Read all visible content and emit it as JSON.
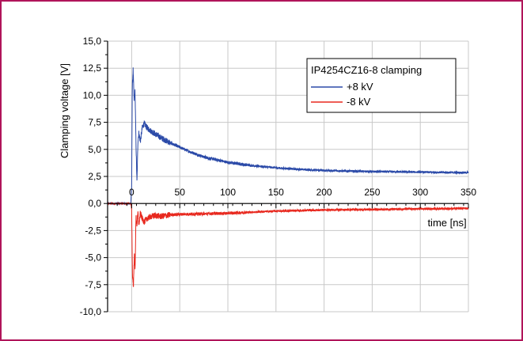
{
  "frame_color": "#b0155a",
  "chart_data": {
    "type": "line",
    "xlabel": "time [ns]",
    "ylabel": "Clamping voltage [V]",
    "xlim": [
      -25,
      350
    ],
    "ylim": [
      -10,
      15
    ],
    "x_ticks": [
      0,
      50,
      100,
      150,
      200,
      250,
      300,
      350
    ],
    "x_tick_labels": [
      "0",
      "50",
      "100",
      "150",
      "200",
      "250",
      "300",
      "350"
    ],
    "y_ticks": [
      -10,
      -7.5,
      -5,
      -2.5,
      0,
      2.5,
      5,
      7.5,
      10,
      12.5,
      15
    ],
    "y_tick_labels": [
      "-10,0",
      "-7,5",
      "-5,0",
      "-2,5",
      "0,0",
      "2,5",
      "5,0",
      "7,5",
      "10,0",
      "12,5",
      "15,0"
    ],
    "grid": true,
    "legend": {
      "title": "IP4254CZ16-8 clamping",
      "placement": "top-right"
    },
    "series": [
      {
        "name": "+8 kV",
        "color": "#2b4aa8",
        "x": [
          -25,
          -1,
          0,
          0.6,
          1.5,
          2.5,
          3.5,
          4.5,
          5.5,
          6.5,
          7.5,
          9,
          11,
          13,
          16,
          20,
          25,
          30,
          40,
          50,
          60,
          75,
          100,
          125,
          150,
          175,
          200,
          250,
          300,
          350
        ],
        "y": [
          0,
          0,
          1.5,
          10.5,
          12.4,
          9.5,
          10.4,
          5.5,
          1.9,
          5.8,
          6.5,
          5.7,
          7.0,
          7.4,
          7.0,
          6.7,
          6.4,
          6.1,
          5.6,
          5.2,
          4.8,
          4.3,
          3.8,
          3.5,
          3.3,
          3.15,
          3.05,
          2.95,
          2.9,
          2.85
        ]
      },
      {
        "name": "-8 kV",
        "color": "#e8281e",
        "x": [
          -25,
          -1,
          0,
          0.8,
          1.8,
          2.8,
          3.5,
          4.5,
          5.5,
          6.5,
          7.5,
          9,
          11,
          13,
          16,
          20,
          25,
          30,
          40,
          50,
          75,
          100,
          125,
          150,
          175,
          200,
          250,
          300,
          350
        ],
        "y": [
          0,
          0,
          -0.5,
          -6.5,
          -7.7,
          -4.5,
          -6.3,
          -1.2,
          -2.0,
          -0.8,
          -2.0,
          -0.9,
          -1.4,
          -1.7,
          -1.4,
          -1.2,
          -1.1,
          -1.2,
          -1.05,
          -1.0,
          -0.95,
          -0.9,
          -0.8,
          -0.7,
          -0.65,
          -0.6,
          -0.55,
          -0.5,
          -0.45
        ]
      }
    ]
  }
}
